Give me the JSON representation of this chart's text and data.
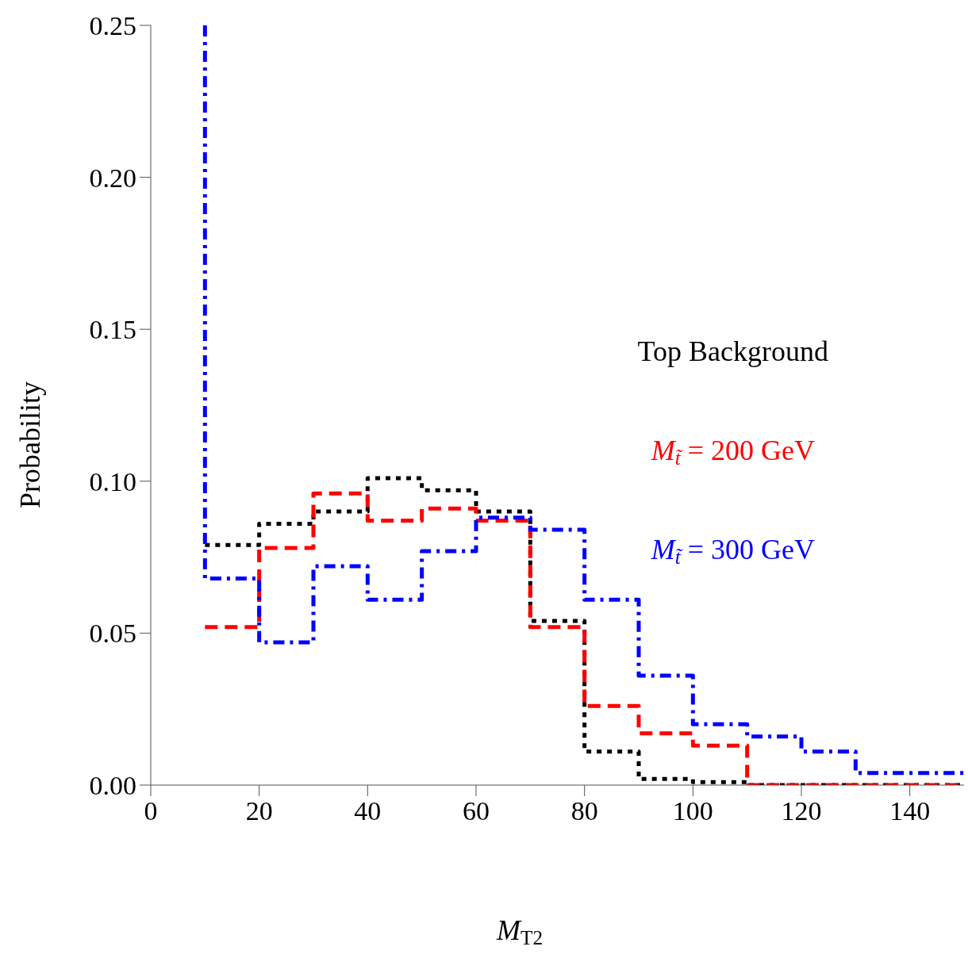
{
  "chart_data": {
    "type": "step",
    "xlabel": "M$_{T2}$",
    "ylabel": "Probability",
    "xlim": [
      0,
      150
    ],
    "xticks": [
      0,
      20,
      40,
      60,
      80,
      100,
      120,
      140
    ],
    "ylim": [
      0,
      0.25
    ],
    "yticks": [
      {
        "value": 0,
        "label": "0.00"
      },
      {
        "value": 0.05,
        "label": "0.05"
      },
      {
        "value": 0.1,
        "label": "0.10"
      },
      {
        "value": 0.15,
        "label": "0.15"
      },
      {
        "value": 0.2,
        "label": "0.20"
      },
      {
        "value": 0.25,
        "label": "0.25"
      }
    ],
    "legend": false,
    "series": [
      {
        "name": "Top Background",
        "color": "#000000",
        "line_style": "dotted",
        "x": [
          10,
          20,
          30,
          40,
          50,
          60,
          70,
          80,
          90,
          100,
          110,
          120,
          130,
          140,
          150
        ],
        "values": [
          0.079,
          0.086,
          0.09,
          0.101,
          0.097,
          0.09,
          0.054,
          0.011,
          0.002,
          0.001,
          0,
          0,
          0,
          0,
          0
        ]
      },
      {
        "name": "M$_{t̃}$ = 200 GeV",
        "color": "#ff0000",
        "line_style": "dashed",
        "x": [
          10,
          20,
          30,
          40,
          50,
          60,
          70,
          80,
          90,
          100,
          110,
          120,
          130,
          140,
          150
        ],
        "values": [
          0.052,
          0.078,
          0.096,
          0.087,
          0.091,
          0.087,
          0.052,
          0.026,
          0.017,
          0.013,
          0,
          0,
          0,
          0,
          0
        ]
      },
      {
        "name": "M$_{t̃}$ = 300 GeV",
        "color": "#0000ff",
        "line_style": "dashdot",
        "x": [
          10,
          10,
          20,
          30,
          40,
          50,
          60,
          70,
          80,
          90,
          100,
          110,
          120,
          130,
          140,
          150
        ],
        "values": [
          0.25,
          0.068,
          0.047,
          0.072,
          0.061,
          0.077,
          0.088,
          0.084,
          0.061,
          0.036,
          0.02,
          0.016,
          0.011,
          0.004,
          0.004,
          0.004
        ]
      }
    ]
  }
}
